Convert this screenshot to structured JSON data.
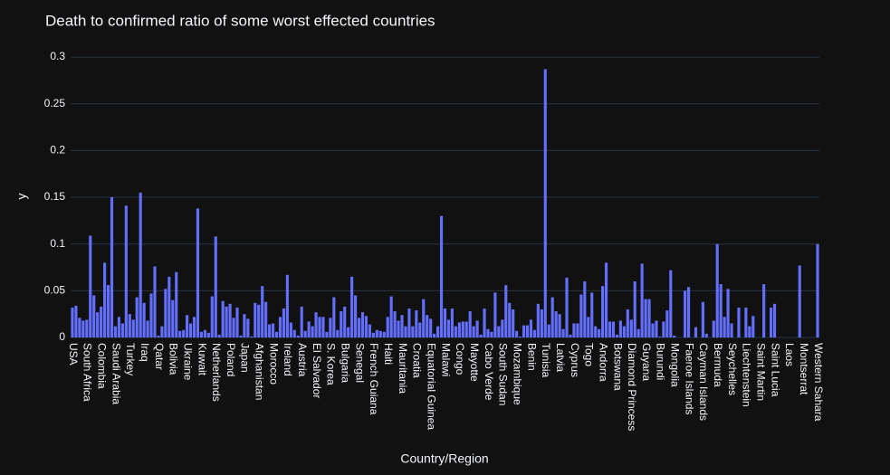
{
  "chart_data": {
    "type": "bar",
    "title": "Death to confirmed ratio of some  worst effected countries",
    "x_label": "Country/Region",
    "y_label": "y",
    "color": "#636efa",
    "grid": true,
    "ylim": [
      0,
      0.302
    ],
    "yticks": [
      0,
      0.05,
      0.1,
      0.15,
      0.2,
      0.25,
      0.3
    ],
    "categories": [
      "USA",
      null,
      null,
      null,
      "South Africa",
      null,
      null,
      null,
      "Colombia",
      null,
      null,
      null,
      "Saudi Arabia",
      null,
      null,
      null,
      "Turkey",
      null,
      null,
      null,
      "Iraq",
      null,
      null,
      null,
      "Qatar",
      null,
      null,
      null,
      "Bolivia",
      null,
      null,
      null,
      "Ukraine",
      null,
      null,
      null,
      "Kuwait",
      null,
      null,
      null,
      "Netherlands",
      null,
      null,
      null,
      "Poland",
      null,
      null,
      null,
      "Japan",
      null,
      null,
      null,
      "Afghanistan",
      null,
      null,
      null,
      "Morocco",
      null,
      null,
      null,
      "Ireland",
      null,
      null,
      null,
      "Austria",
      null,
      null,
      null,
      "El Salvador",
      null,
      null,
      null,
      "S. Korea",
      null,
      null,
      null,
      "Bulgaria",
      null,
      null,
      null,
      "Senegal",
      null,
      null,
      null,
      "French Guiana",
      null,
      null,
      null,
      "Haiti",
      null,
      null,
      null,
      "Mauritania",
      null,
      null,
      null,
      "Croatia",
      null,
      null,
      null,
      "Equatorial Guinea",
      null,
      null,
      null,
      "Malawi",
      null,
      null,
      null,
      "Congo",
      null,
      null,
      null,
      "Mayotte",
      null,
      null,
      null,
      "Cabo Verde",
      null,
      null,
      null,
      "South Sudan",
      null,
      null,
      null,
      "Mozambique",
      null,
      null,
      null,
      "Benin",
      null,
      null,
      null,
      "Tunisia",
      null,
      null,
      null,
      "Latvia",
      null,
      null,
      null,
      "Cyprus",
      null,
      null,
      null,
      "Togo",
      null,
      null,
      null,
      "Andorra",
      null,
      null,
      null,
      "Botswana",
      null,
      null,
      null,
      "Diamond Princess",
      null,
      null,
      null,
      "Guyana",
      null,
      null,
      null,
      "Burundi",
      null,
      null,
      null,
      "Mongolia",
      null,
      null,
      null,
      "Faeroe Islands",
      null,
      null,
      null,
      "Cayman Islands",
      null,
      null,
      null,
      "Bermuda",
      null,
      null,
      null,
      "Seychelles",
      null,
      null,
      null,
      "Liechtenstein",
      null,
      null,
      null,
      "Saint Martin",
      null,
      null,
      null,
      "Saint Lucia",
      null,
      null,
      null,
      "Laos",
      null,
      null,
      null,
      "Montserrat",
      null,
      null,
      null,
      "Western Sahara"
    ],
    "values": [
      0.032,
      0.034,
      0.021,
      0.018,
      0.019,
      0.109,
      0.045,
      0.027,
      0.033,
      0.08,
      0.056,
      0.15,
      0.012,
      0.022,
      0.015,
      0.141,
      0.025,
      0.019,
      0.043,
      0.155,
      0.037,
      0.018,
      0.047,
      0.076,
      0.002,
      0.012,
      0.052,
      0.065,
      0.04,
      0.07,
      0.007,
      0.008,
      0.024,
      0.015,
      0.022,
      0.138,
      0.006,
      0.008,
      0.005,
      0.044,
      0.108,
      0.003,
      0.039,
      0.033,
      0.036,
      0.021,
      0.032,
      0.002,
      0.025,
      0.02,
      0.001,
      0.037,
      0.035,
      0.055,
      0.038,
      0.014,
      0.015,
      0.006,
      0.022,
      0.031,
      0.067,
      0.016,
      0.008,
      0.002,
      0.033,
      0.007,
      0.017,
      0.012,
      0.027,
      0.022,
      0.022,
      0.006,
      0.021,
      0.043,
      0.008,
      0.028,
      0.033,
      0.011,
      0.065,
      0.045,
      0.021,
      0.027,
      0.023,
      0.014,
      0.005,
      0.008,
      0.007,
      0.006,
      0.022,
      0.044,
      0.028,
      0.018,
      0.024,
      0.012,
      0.031,
      0.012,
      0.029,
      0.016,
      0.041,
      0.024,
      0.02,
      0.004,
      0.012,
      0.13,
      0.031,
      0.019,
      0.031,
      0.012,
      0.016,
      0.017,
      0.017,
      0.028,
      0.012,
      0.018,
      0.003,
      0.031,
      0.009,
      0.006,
      0.048,
      0.012,
      0.019,
      0.056,
      0.037,
      0.03,
      0.007,
      0.001,
      0.013,
      0.013,
      0.019,
      0.008,
      0.036,
      0.03,
      0.287,
      0.014,
      0.043,
      0.028,
      0.025,
      0.009,
      0.064,
      0.003,
      0.015,
      0.015,
      0.046,
      0.06,
      0.022,
      0.048,
      0.012,
      0.009,
      0.055,
      0.08,
      0.017,
      0.017,
      0.003,
      0.018,
      0.012,
      0.03,
      0.019,
      0.06,
      0.009,
      0.079,
      0.041,
      0.041,
      0.015,
      0.018,
      0.001,
      0.017,
      0.029,
      0.072,
      0.002,
      0,
      0,
      0.05,
      0.054,
      0,
      0.011,
      0,
      0.038,
      0.004,
      0,
      0.018,
      0.1,
      0.057,
      0.022,
      0.052,
      0.015,
      0,
      0.032,
      0,
      0.032,
      0.012,
      0.023,
      0,
      0,
      0.057,
      0,
      0.032,
      0.036,
      0,
      0,
      0,
      0,
      0,
      0,
      0.077,
      0,
      0,
      0,
      0,
      0.1
    ]
  }
}
